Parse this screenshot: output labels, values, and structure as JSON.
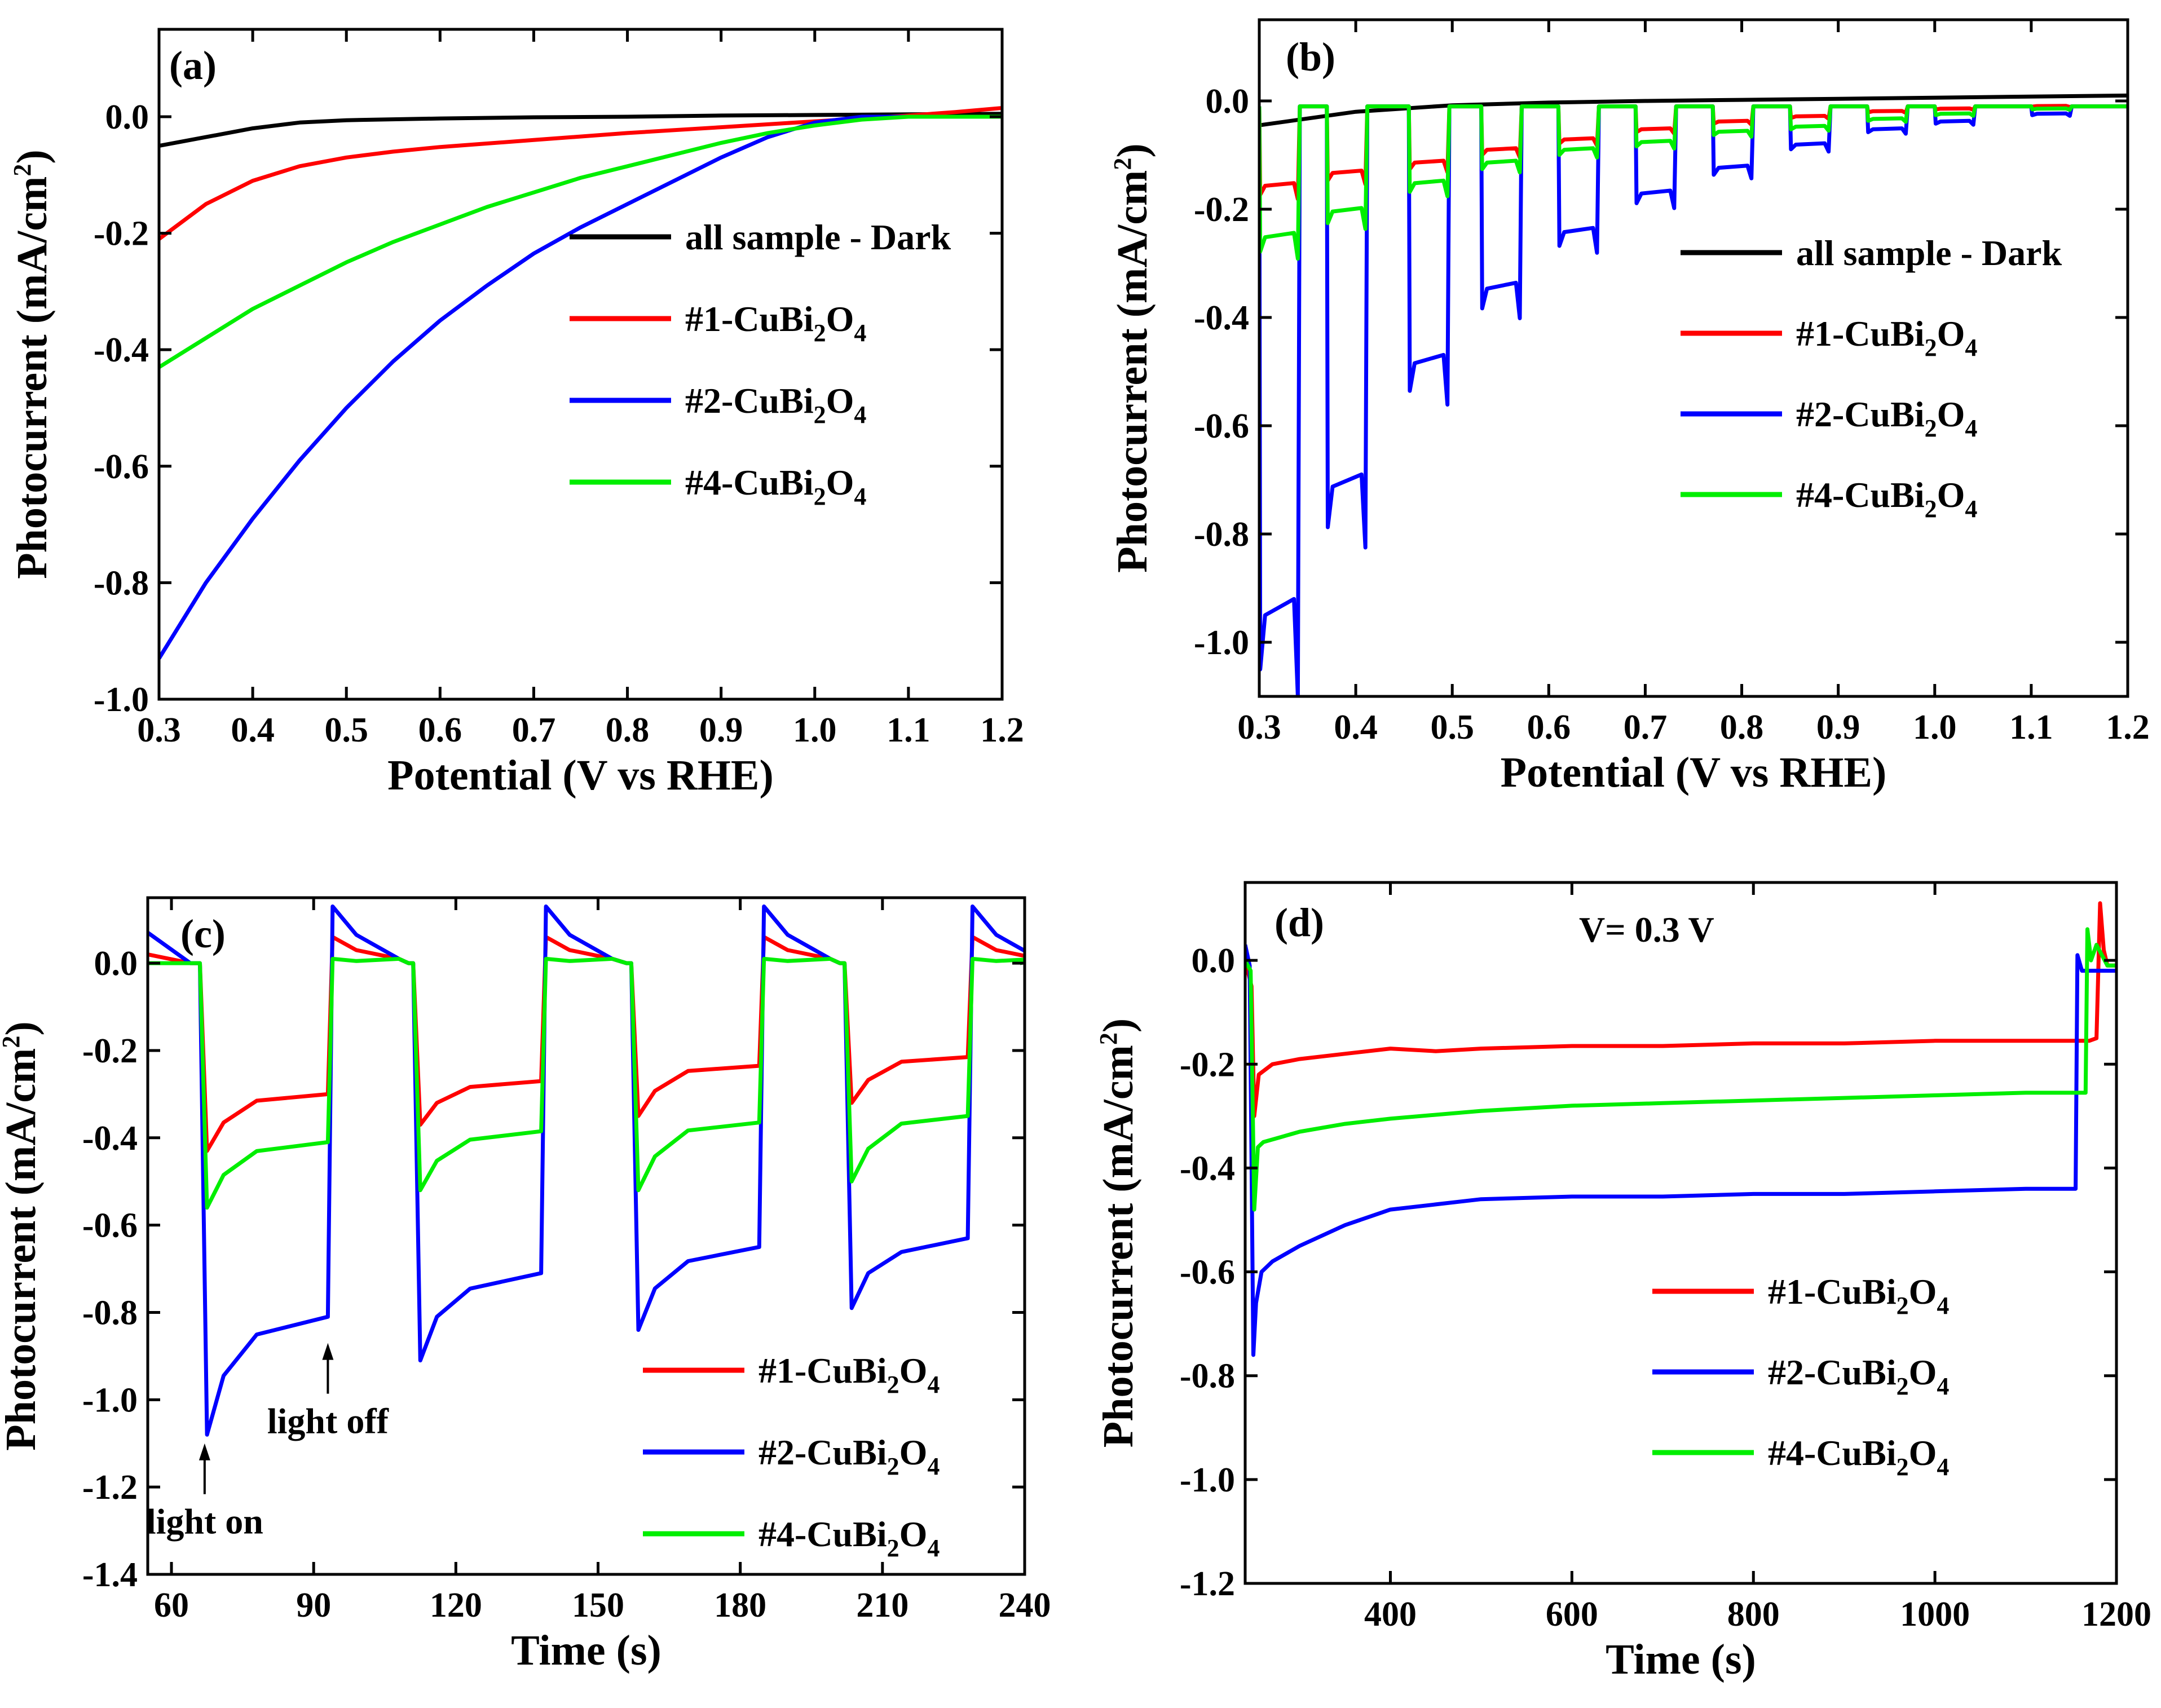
{
  "figure": {
    "colors": {
      "dark": "#000000",
      "s1": "#ff0000",
      "s2": "#0000ff",
      "s4": "#00ee00"
    }
  },
  "chart_data": [
    {
      "id": "a",
      "type": "line",
      "panel_label": "(a)",
      "xlabel": "Potential (V vs RHE)",
      "ylabel_main": "Photocurrent (mA/cm",
      "ylabel_sup": "2",
      "ylabel_end": ")",
      "xlim": [
        0.3,
        1.2
      ],
      "ylim": [
        -1.0,
        0.15
      ],
      "xticks": [
        "0.3",
        "0.4",
        "0.5",
        "0.6",
        "0.7",
        "0.8",
        "0.9",
        "1.0",
        "1.1",
        "1.2"
      ],
      "yticks": [
        "-1.0",
        "-0.8",
        "-0.6",
        "-0.4",
        "-0.2",
        "0.0"
      ],
      "legend_position": "right-middle",
      "legend": [
        {
          "key": "dark",
          "pre": "all sample - Dark",
          "mid": "",
          "sub": "",
          "post": "",
          "sub2": ""
        },
        {
          "key": "s1",
          "pre": "#1-CuBi",
          "mid": "O",
          "sub": "2",
          "post": "",
          "sub2": "4"
        },
        {
          "key": "s2",
          "pre": "#2-CuBi",
          "mid": "O",
          "sub": "2",
          "post": "",
          "sub2": "4"
        },
        {
          "key": "s4",
          "pre": "#4-CuBi",
          "mid": "O",
          "sub": "2",
          "post": "",
          "sub2": "4"
        }
      ],
      "series": [
        {
          "name": "all sample - Dark",
          "key": "dark",
          "x": [
            0.3,
            0.35,
            0.4,
            0.45,
            0.5,
            0.6,
            0.7,
            0.8,
            0.9,
            1.0,
            1.1,
            1.2
          ],
          "y": [
            -0.05,
            -0.035,
            -0.02,
            -0.01,
            -0.006,
            -0.003,
            -0.001,
            0.0,
            0.002,
            0.003,
            0.004,
            0.005
          ]
        },
        {
          "name": "#1-CuBi2O4",
          "key": "s1",
          "x": [
            0.3,
            0.35,
            0.4,
            0.45,
            0.5,
            0.55,
            0.6,
            0.7,
            0.8,
            0.9,
            1.0,
            1.1,
            1.15,
            1.2
          ],
          "y": [
            -0.21,
            -0.15,
            -0.11,
            -0.085,
            -0.07,
            -0.06,
            -0.052,
            -0.04,
            -0.028,
            -0.018,
            -0.008,
            0.002,
            0.008,
            0.015
          ]
        },
        {
          "name": "#2-CuBi2O4",
          "key": "s2",
          "x": [
            0.3,
            0.35,
            0.4,
            0.45,
            0.5,
            0.55,
            0.6,
            0.65,
            0.7,
            0.75,
            0.8,
            0.85,
            0.9,
            0.95,
            1.0,
            1.05,
            1.1,
            1.2
          ],
          "y": [
            -0.93,
            -0.8,
            -0.69,
            -0.59,
            -0.5,
            -0.42,
            -0.35,
            -0.29,
            -0.235,
            -0.19,
            -0.15,
            -0.11,
            -0.07,
            -0.035,
            -0.01,
            0.0,
            0.0,
            0.0
          ]
        },
        {
          "name": "#4-CuBi2O4",
          "key": "s4",
          "x": [
            0.3,
            0.35,
            0.4,
            0.45,
            0.5,
            0.55,
            0.6,
            0.65,
            0.7,
            0.75,
            0.8,
            0.85,
            0.9,
            0.95,
            1.0,
            1.05,
            1.1,
            1.2
          ],
          "y": [
            -0.43,
            -0.38,
            -0.33,
            -0.29,
            -0.25,
            -0.215,
            -0.185,
            -0.155,
            -0.13,
            -0.105,
            -0.085,
            -0.065,
            -0.045,
            -0.028,
            -0.015,
            -0.005,
            0.0,
            0.0
          ]
        }
      ]
    },
    {
      "id": "b",
      "type": "line",
      "panel_label": "(b)",
      "xlabel": "Potential (V vs RHE)",
      "ylabel_main": "Photocurrent (mA/cm",
      "ylabel_sup": "2",
      "ylabel_end": ")",
      "xlim": [
        0.3,
        1.2
      ],
      "ylim": [
        -1.1,
        0.15
      ],
      "xticks": [
        "0.3",
        "0.4",
        "0.5",
        "0.6",
        "0.7",
        "0.8",
        "0.9",
        "1.0",
        "1.1",
        "1.2"
      ],
      "yticks": [
        "-1.0",
        "-0.8",
        "-0.6",
        "-0.4",
        "-0.2",
        "0.0"
      ],
      "legend_position": "right-middle",
      "legend": [
        {
          "key": "dark",
          "pre": "all sample - Dark",
          "mid": "",
          "sub": "",
          "post": "",
          "sub2": ""
        },
        {
          "key": "s1",
          "pre": "#1-CuBi",
          "mid": "O",
          "sub": "2",
          "post": "",
          "sub2": "4"
        },
        {
          "key": "s2",
          "pre": "#2-CuBi",
          "mid": "O",
          "sub": "2",
          "post": "",
          "sub2": "4"
        },
        {
          "key": "s4",
          "pre": "#4-CuBi",
          "mid": "O",
          "sub": "2",
          "post": "",
          "sub2": "4"
        }
      ],
      "chopped": {
        "on_starts": [
          0.3,
          0.37,
          0.455,
          0.53,
          0.61,
          0.69,
          0.77,
          0.85,
          0.93,
          1.0,
          1.1
        ],
        "period_on": 0.04,
        "envelope_x": [
          0.3,
          0.37,
          0.455,
          0.53,
          0.61,
          0.69,
          0.77,
          0.85,
          0.93,
          1.0,
          1.1,
          1.2
        ],
        "s1_on": [
          -0.165,
          -0.14,
          -0.12,
          -0.095,
          -0.075,
          -0.055,
          -0.04,
          -0.03,
          -0.02,
          -0.015,
          -0.01,
          -0.008
        ],
        "s2_on": [
          -1.0,
          -0.75,
          -0.51,
          -0.365,
          -0.255,
          -0.18,
          -0.13,
          -0.085,
          -0.055,
          -0.04,
          -0.025,
          -0.02
        ],
        "s4_on": [
          -0.265,
          -0.215,
          -0.16,
          -0.12,
          -0.095,
          -0.08,
          -0.06,
          -0.05,
          -0.035,
          -0.025,
          -0.015,
          -0.01
        ]
      },
      "series": [
        {
          "name": "all sample - Dark",
          "key": "dark",
          "x": [
            0.3,
            0.4,
            0.5,
            0.6,
            0.7,
            0.8,
            0.9,
            1.0,
            1.1,
            1.2
          ],
          "y": [
            -0.045,
            -0.02,
            -0.008,
            -0.003,
            0.0,
            0.002,
            0.004,
            0.006,
            0.008,
            0.01
          ]
        }
      ]
    },
    {
      "id": "c",
      "type": "line",
      "panel_label": "(c)",
      "xlabel": "Time (s)",
      "ylabel_main": "Photocurrent (mA/cm",
      "ylabel_sup": "2",
      "ylabel_end": ")",
      "xlim": [
        55,
        240
      ],
      "ylim": [
        -1.4,
        0.15
      ],
      "xticks": [
        "60",
        "90",
        "120",
        "150",
        "180",
        "210",
        "240"
      ],
      "yticks": [
        "-1.4",
        "-1.2",
        "-1.0",
        "-0.8",
        "-0.6",
        "-0.4",
        "-0.2",
        "0.0"
      ],
      "legend_position": "bottom-right",
      "legend": [
        {
          "key": "s1",
          "pre": "#1-CuBi",
          "mid": "O",
          "sub": "2",
          "post": "",
          "sub2": "4"
        },
        {
          "key": "s2",
          "pre": "#2-CuBi",
          "mid": "O",
          "sub": "2",
          "post": "",
          "sub2": "4"
        },
        {
          "key": "s4",
          "pre": "#4-CuBi",
          "mid": "O",
          "sub": "2",
          "post": "",
          "sub2": "4"
        }
      ],
      "annotations": [
        {
          "text": "light on",
          "x": 67,
          "y": -1.1
        },
        {
          "text": "light off",
          "x": 93,
          "y": -0.87
        }
      ],
      "transient": {
        "on_times": [
          66,
          111,
          157,
          202
        ],
        "off_times": [
          94,
          139,
          185,
          229
        ],
        "s1": {
          "spike": [
            -0.43,
            -0.37,
            -0.35,
            -0.32
          ],
          "plateau": [
            -0.3,
            -0.27,
            -0.235,
            -0.215
          ],
          "overshoot": 0.06
        },
        "s2": {
          "spike": [
            -1.08,
            -0.91,
            -0.84,
            -0.79
          ],
          "plateau": [
            -0.81,
            -0.71,
            -0.65,
            -0.63
          ],
          "overshoot": 0.13
        },
        "s4": {
          "spike": [
            -0.56,
            -0.52,
            -0.52,
            -0.5
          ],
          "plateau": [
            -0.41,
            -0.385,
            -0.365,
            -0.35
          ],
          "overshoot": 0.01
        }
      }
    },
    {
      "id": "d",
      "type": "line",
      "panel_label": "(d)",
      "annotation": "V= 0.3 V",
      "xlabel": "Time (s)",
      "ylabel_main": "Photocurrent (mA/cm",
      "ylabel_sup": "2",
      "ylabel_end": ")",
      "xlim": [
        240,
        1200
      ],
      "ylim": [
        -1.2,
        0.15
      ],
      "xticks": [
        "400",
        "600",
        "800",
        "1000",
        "1200"
      ],
      "yticks": [
        "-1.2",
        "-1.0",
        "-0.8",
        "-0.6",
        "-0.4",
        "-0.2",
        "0.0"
      ],
      "legend_position": "center-right",
      "legend": [
        {
          "key": "s1",
          "pre": "#1-CuBi",
          "mid": "O",
          "sub": "2",
          "post": "",
          "sub2": "4"
        },
        {
          "key": "s2",
          "pre": "#2-CuBi",
          "mid": "O",
          "sub": "2",
          "post": "",
          "sub2": "4"
        },
        {
          "key": "s4",
          "pre": "#4-CuBi",
          "mid": "O",
          "sub": "2",
          "post": "",
          "sub2": "4"
        }
      ],
      "series": [
        {
          "name": "#1-CuBi2O4",
          "key": "s1",
          "x": [
            240,
            247,
            250,
            255,
            270,
            300,
            350,
            400,
            450,
            500,
            600,
            700,
            800,
            900,
            1000,
            1100,
            1170,
            1178,
            1182,
            1186,
            1190,
            1200
          ],
          "y": [
            0.0,
            -0.05,
            -0.3,
            -0.22,
            -0.2,
            -0.19,
            -0.18,
            -0.17,
            -0.175,
            -0.17,
            -0.165,
            -0.165,
            -0.16,
            -0.16,
            -0.155,
            -0.155,
            -0.155,
            -0.15,
            0.11,
            0.02,
            -0.01,
            -0.01
          ]
        },
        {
          "name": "#2-CuBi2O4",
          "key": "s2",
          "x": [
            240,
            245,
            249,
            252,
            258,
            270,
            300,
            350,
            400,
            450,
            500,
            600,
            700,
            800,
            900,
            1000,
            1100,
            1155,
            1157,
            1162,
            1170,
            1200
          ],
          "y": [
            0.03,
            -0.01,
            -0.76,
            -0.66,
            -0.6,
            -0.58,
            -0.55,
            -0.51,
            -0.48,
            -0.47,
            -0.46,
            -0.455,
            -0.455,
            -0.45,
            -0.45,
            -0.445,
            -0.44,
            -0.44,
            0.01,
            -0.02,
            -0.02,
            -0.02
          ]
        },
        {
          "name": "#4-CuBi2O4",
          "key": "s4",
          "x": [
            240,
            246,
            250,
            254,
            260,
            280,
            300,
            350,
            400,
            500,
            600,
            700,
            800,
            900,
            1000,
            1100,
            1166,
            1168,
            1172,
            1178,
            1190,
            1200
          ],
          "y": [
            0.0,
            -0.02,
            -0.48,
            -0.36,
            -0.35,
            -0.34,
            -0.33,
            -0.315,
            -0.305,
            -0.29,
            -0.28,
            -0.275,
            -0.27,
            -0.265,
            -0.26,
            -0.255,
            -0.255,
            0.06,
            0.0,
            0.03,
            -0.01,
            -0.01
          ]
        }
      ]
    }
  ]
}
